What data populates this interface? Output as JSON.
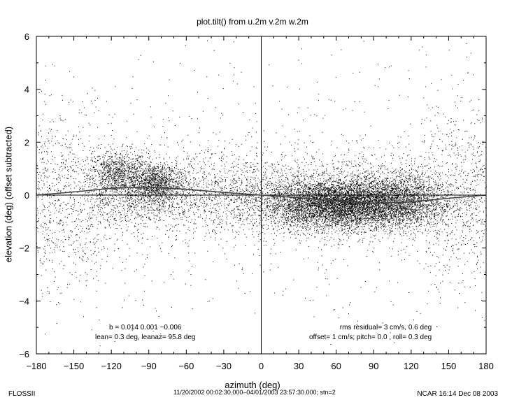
{
  "chart_data": {
    "type": "scatter",
    "title": "plot.tilt() from u.2m v.2m w.2m",
    "xlabel": "azimuth (deg)",
    "ylabel": "elevation (deg)  (offset subtracted)",
    "xlim": [
      -180,
      180
    ],
    "ylim": [
      -6,
      6
    ],
    "x_ticks": [
      "−180",
      "−150",
      "−120",
      "−90",
      "−60",
      "−30",
      "0",
      "30",
      "60",
      "90",
      "120",
      "150",
      "180"
    ],
    "y_ticks": [
      "−6",
      "−4",
      "−2",
      "0",
      "2",
      "4",
      "6"
    ],
    "grid": false,
    "reference_lines": {
      "vertical_x": 0,
      "horizontal_y": 0
    },
    "density_clusters": [
      {
        "x_center": -115,
        "y_center": 0.8,
        "x_spread": 12,
        "y_spread": 0.45,
        "weight": 900
      },
      {
        "x_center": -85,
        "y_center": 0.4,
        "x_spread": 10,
        "y_spread": 0.4,
        "weight": 1100
      },
      {
        "x_center": 60,
        "y_center": -0.35,
        "x_spread": 28,
        "y_spread": 0.45,
        "weight": 9000
      },
      {
        "x_center": 110,
        "y_center": -0.25,
        "x_spread": 22,
        "y_spread": 0.5,
        "weight": 2000
      }
    ],
    "fit_curve": {
      "x": [
        -180,
        -150,
        -120,
        -90,
        -60,
        -30,
        0,
        30,
        60,
        90,
        120,
        150,
        180
      ],
      "y": [
        0.0,
        0.12,
        0.26,
        0.3,
        0.22,
        0.1,
        0.0,
        -0.1,
        -0.22,
        -0.3,
        -0.26,
        -0.12,
        0.0
      ]
    },
    "colors": {
      "points": "#000000",
      "axes": "#000000",
      "background": "#ffffff"
    }
  },
  "annotations": {
    "left_line1": "b =  0.014  0.001  −0.006",
    "left_line2": "lean= 0.3 deg, leanaz= 95.8 deg",
    "right_line1": "rms residual= 3 cm/s, 0.6 deg",
    "right_line2": "offset= 1 cm/s; pitch= 0.0 , roll= 0.3 deg"
  },
  "footer": {
    "left": "FLOSSII",
    "center": "11/20/2002 00:02:30.000–04/01/2003 23:57:30.000; stn=2",
    "right": "NCAR 16:14 Dec 08 2003"
  }
}
